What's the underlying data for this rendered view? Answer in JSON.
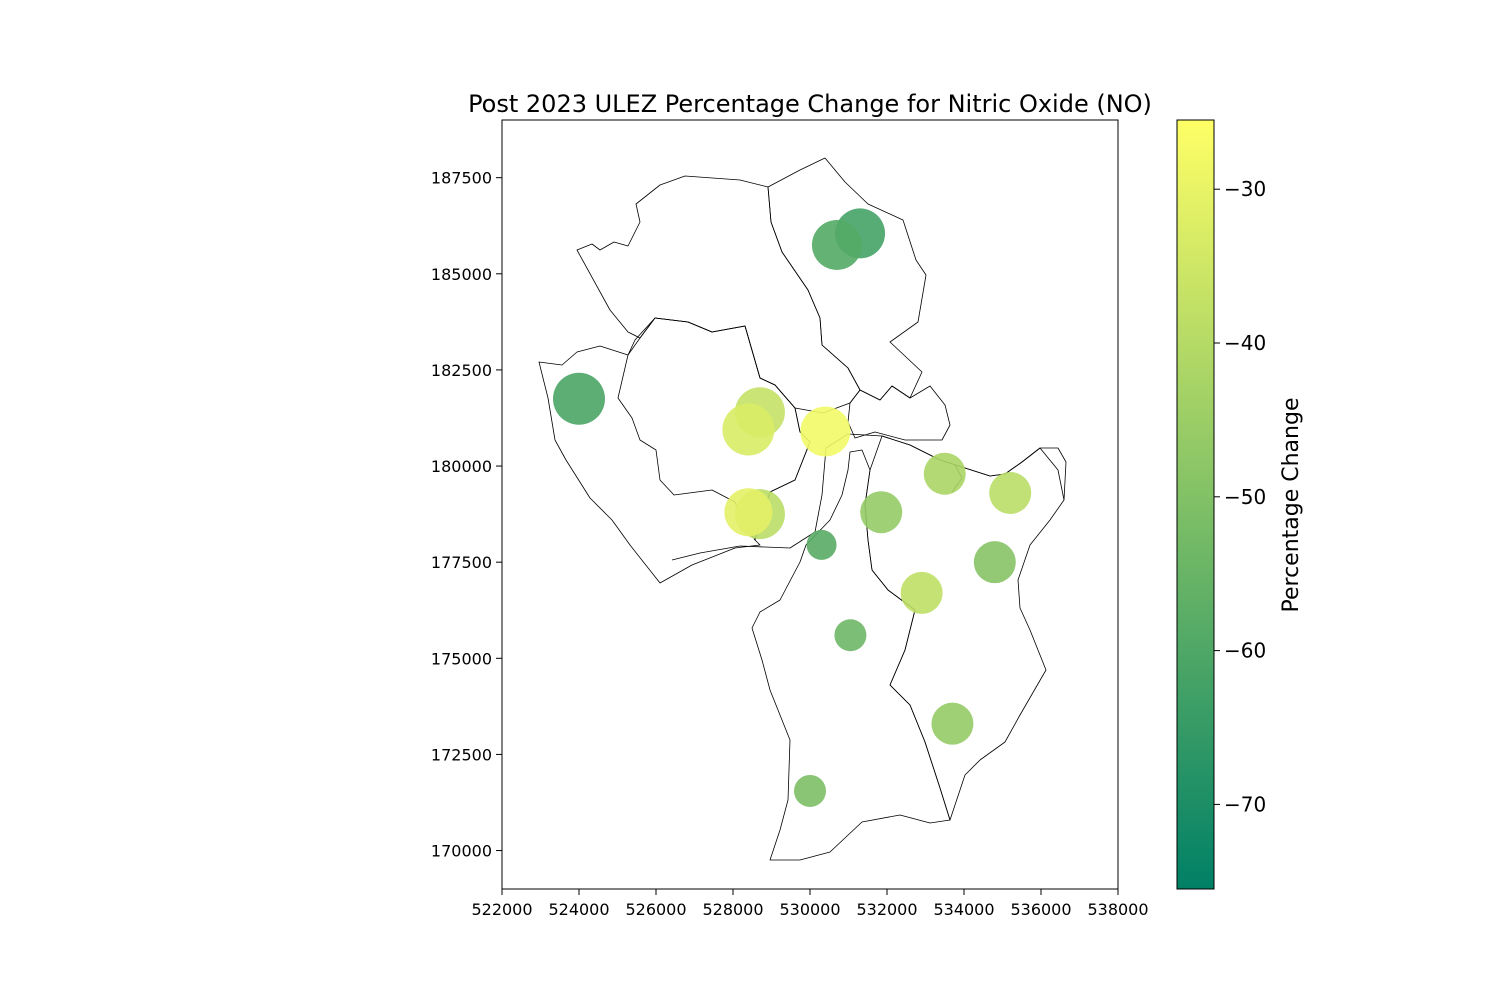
{
  "chart_data": {
    "type": "scatter",
    "title": "Post 2023 ULEZ Percentage Change for Nitric Oxide (NO)",
    "xlabel": "",
    "ylabel": "",
    "xlim": [
      522000,
      538000
    ],
    "ylim": [
      169000,
      189000
    ],
    "x_ticks": [
      522000,
      524000,
      526000,
      528000,
      530000,
      532000,
      534000,
      536000,
      538000
    ],
    "y_ticks": [
      170000,
      172500,
      175000,
      177500,
      180000,
      182500,
      185000,
      187500
    ],
    "grid": false,
    "colorbar": {
      "label": "Percentage Change",
      "colormap": "summer",
      "color_low": "#008066",
      "color_high": "#ffff66",
      "range": [
        -75.5,
        -25.5
      ],
      "ticks": [
        -30,
        -40,
        -50,
        -60,
        -70
      ],
      "tick_labels": [
        "−30",
        "−40",
        "−50",
        "−60",
        "−70"
      ]
    },
    "points": [
      {
        "x": 531300,
        "y": 186050,
        "value": -62,
        "size": 25
      },
      {
        "x": 530700,
        "y": 185750,
        "value": -59,
        "size": 25
      },
      {
        "x": 524000,
        "y": 181750,
        "value": -61,
        "size": 26
      },
      {
        "x": 528700,
        "y": 181400,
        "value": -37,
        "size": 25
      },
      {
        "x": 528400,
        "y": 180950,
        "value": -33,
        "size": 26
      },
      {
        "x": 530400,
        "y": 180900,
        "value": -28,
        "size": 25
      },
      {
        "x": 533500,
        "y": 179800,
        "value": -42,
        "size": 21
      },
      {
        "x": 535200,
        "y": 179300,
        "value": -39,
        "size": 21
      },
      {
        "x": 531850,
        "y": 178800,
        "value": -46,
        "size": 21
      },
      {
        "x": 528700,
        "y": 178750,
        "value": -39,
        "size": 25
      },
      {
        "x": 528400,
        "y": 178800,
        "value": -31,
        "size": 24
      },
      {
        "x": 530300,
        "y": 177950,
        "value": -58,
        "size": 15
      },
      {
        "x": 534800,
        "y": 177500,
        "value": -49,
        "size": 21
      },
      {
        "x": 532900,
        "y": 176700,
        "value": -38,
        "size": 21
      },
      {
        "x": 531050,
        "y": 175600,
        "value": -54,
        "size": 16
      },
      {
        "x": 533700,
        "y": 173300,
        "value": -46,
        "size": 21
      },
      {
        "x": 530000,
        "y": 171550,
        "value": -51,
        "size": 16
      }
    ]
  }
}
